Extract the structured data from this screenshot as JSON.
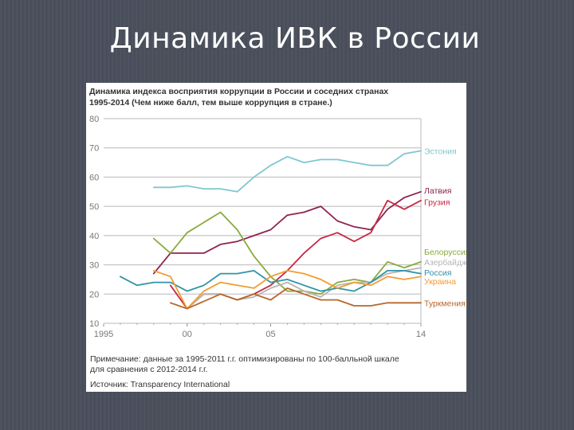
{
  "slide": {
    "title": "Динамика ИВК в России"
  },
  "figure": {
    "title_line1": "Динамика индекса восприятия коррупции в России и соседних странах",
    "title_line2": "1995-2014 (Чем ниже балл, тем выше коррупция в стране.)",
    "note_line1": "Примечание: данные за 1995-2011 г.г. оптимизированы по 100-балльной шкале",
    "note_line2": "для сравнения с 2012-2014 г.г.",
    "source": "Источник: Transparency International"
  },
  "chart_data": {
    "type": "line",
    "title": "",
    "xlabel": "",
    "ylabel": "",
    "xlim": [
      1995,
      2014
    ],
    "ylim": [
      10,
      80
    ],
    "yticks": [
      10,
      20,
      30,
      40,
      50,
      60,
      70,
      80
    ],
    "xticks": [
      {
        "value": 1995,
        "label": "1995"
      },
      {
        "value": 2000,
        "label": "00"
      },
      {
        "value": 2005,
        "label": "05"
      },
      {
        "value": 2014,
        "label": "14"
      }
    ],
    "grid": "horizontal",
    "legend": "right",
    "series": [
      {
        "name": "Эстония",
        "color": "#7ec8cf",
        "points": [
          [
            1998,
            56.5
          ],
          [
            1999,
            56.5
          ],
          [
            2000,
            57
          ],
          [
            2001,
            56
          ],
          [
            2002,
            56
          ],
          [
            2003,
            55
          ],
          [
            2004,
            60
          ],
          [
            2005,
            64
          ],
          [
            2006,
            67
          ],
          [
            2007,
            65
          ],
          [
            2008,
            66
          ],
          [
            2009,
            66
          ],
          [
            2010,
            65
          ],
          [
            2011,
            64
          ],
          [
            2012,
            64
          ],
          [
            2013,
            68
          ],
          [
            2014,
            69
          ]
        ]
      },
      {
        "name": "Латвия",
        "color": "#8e2350",
        "points": [
          [
            1998,
            27
          ],
          [
            1999,
            34
          ],
          [
            2000,
            34
          ],
          [
            2001,
            34
          ],
          [
            2002,
            37
          ],
          [
            2003,
            38
          ],
          [
            2004,
            40
          ],
          [
            2005,
            42
          ],
          [
            2006,
            47
          ],
          [
            2007,
            48
          ],
          [
            2008,
            50
          ],
          [
            2009,
            45
          ],
          [
            2010,
            43
          ],
          [
            2011,
            42
          ],
          [
            2012,
            49
          ],
          [
            2013,
            53
          ],
          [
            2014,
            55
          ]
        ]
      },
      {
        "name": "Грузия",
        "color": "#c62a45",
        "points": [
          [
            1999,
            23
          ],
          [
            2000,
            15
          ],
          [
            2001,
            20
          ],
          [
            2002,
            20
          ],
          [
            2003,
            18
          ],
          [
            2004,
            20
          ],
          [
            2005,
            23
          ],
          [
            2006,
            28
          ],
          [
            2007,
            34
          ],
          [
            2008,
            39
          ],
          [
            2009,
            41
          ],
          [
            2010,
            38
          ],
          [
            2011,
            41
          ],
          [
            2012,
            52
          ],
          [
            2013,
            49
          ],
          [
            2014,
            52
          ]
        ]
      },
      {
        "name": "Белоруссия",
        "color": "#8aaa3c",
        "points": [
          [
            1998,
            39
          ],
          [
            1999,
            34
          ],
          [
            2000,
            41
          ],
          [
            2002,
            48
          ],
          [
            2003,
            42
          ],
          [
            2004,
            33
          ],
          [
            2005,
            26
          ],
          [
            2006,
            21
          ],
          [
            2007,
            21
          ],
          [
            2008,
            20
          ],
          [
            2009,
            24
          ],
          [
            2010,
            25
          ],
          [
            2011,
            24
          ],
          [
            2012,
            31
          ],
          [
            2013,
            29
          ],
          [
            2014,
            31
          ]
        ]
      },
      {
        "name": "Азербайджан",
        "color": "#b6b6b6",
        "points": [
          [
            2000,
            15
          ],
          [
            2001,
            20
          ],
          [
            2002,
            20
          ],
          [
            2003,
            18
          ],
          [
            2004,
            19
          ],
          [
            2005,
            22
          ],
          [
            2006,
            24
          ],
          [
            2007,
            21
          ],
          [
            2008,
            19
          ],
          [
            2009,
            23
          ],
          [
            2010,
            24
          ],
          [
            2011,
            24
          ],
          [
            2012,
            27
          ],
          [
            2013,
            28
          ],
          [
            2014,
            29
          ]
        ]
      },
      {
        "name": "Россия",
        "color": "#2f94a7",
        "points": [
          [
            1996,
            26
          ],
          [
            1997,
            23
          ],
          [
            1998,
            24
          ],
          [
            1999,
            24
          ],
          [
            2000,
            21
          ],
          [
            2001,
            23
          ],
          [
            2002,
            27
          ],
          [
            2003,
            27
          ],
          [
            2004,
            28
          ],
          [
            2005,
            24
          ],
          [
            2006,
            25
          ],
          [
            2007,
            23
          ],
          [
            2008,
            21
          ],
          [
            2009,
            22
          ],
          [
            2010,
            21
          ],
          [
            2011,
            24
          ],
          [
            2012,
            28
          ],
          [
            2013,
            28
          ],
          [
            2014,
            27
          ]
        ]
      },
      {
        "name": "Украина",
        "color": "#f39c32",
        "points": [
          [
            1998,
            28
          ],
          [
            1999,
            26
          ],
          [
            2000,
            15
          ],
          [
            2001,
            21
          ],
          [
            2002,
            24
          ],
          [
            2003,
            23
          ],
          [
            2004,
            22
          ],
          [
            2005,
            26
          ],
          [
            2006,
            28
          ],
          [
            2007,
            27
          ],
          [
            2008,
            25
          ],
          [
            2009,
            22
          ],
          [
            2010,
            24
          ],
          [
            2011,
            23
          ],
          [
            2012,
            26
          ],
          [
            2013,
            25
          ],
          [
            2014,
            26
          ]
        ]
      },
      {
        "name": "Туркмения",
        "color": "#b7672a",
        "points": [
          [
            1999,
            17
          ],
          [
            2000,
            15
          ],
          [
            2002,
            20
          ],
          [
            2003,
            18
          ],
          [
            2004,
            20
          ],
          [
            2005,
            18
          ],
          [
            2006,
            22
          ],
          [
            2007,
            20
          ],
          [
            2008,
            18
          ],
          [
            2009,
            18
          ],
          [
            2010,
            16
          ],
          [
            2011,
            16
          ],
          [
            2012,
            17
          ],
          [
            2013,
            17
          ],
          [
            2014,
            17
          ]
        ]
      }
    ],
    "legend_labels": [
      {
        "text": "Эстония",
        "color": "#7ec8cf",
        "value": 69
      },
      {
        "text": "Латвия",
        "color": "#8e2350",
        "value": 55.5
      },
      {
        "text": "Грузия",
        "color": "#c62a45",
        "value": 51.5
      },
      {
        "text": "Белорусcия",
        "color": "#8aaa3c",
        "value": 34.5
      },
      {
        "text": "Азербайджан",
        "color": "#b6b6b6",
        "value": 31
      },
      {
        "text": "Россия",
        "color": "#2f94a7",
        "value": 27.5
      },
      {
        "text": "Украина",
        "color": "#f39c32",
        "value": 24.5
      },
      {
        "text": "Туркмения",
        "color": "#b7672a",
        "value": 17
      }
    ]
  }
}
